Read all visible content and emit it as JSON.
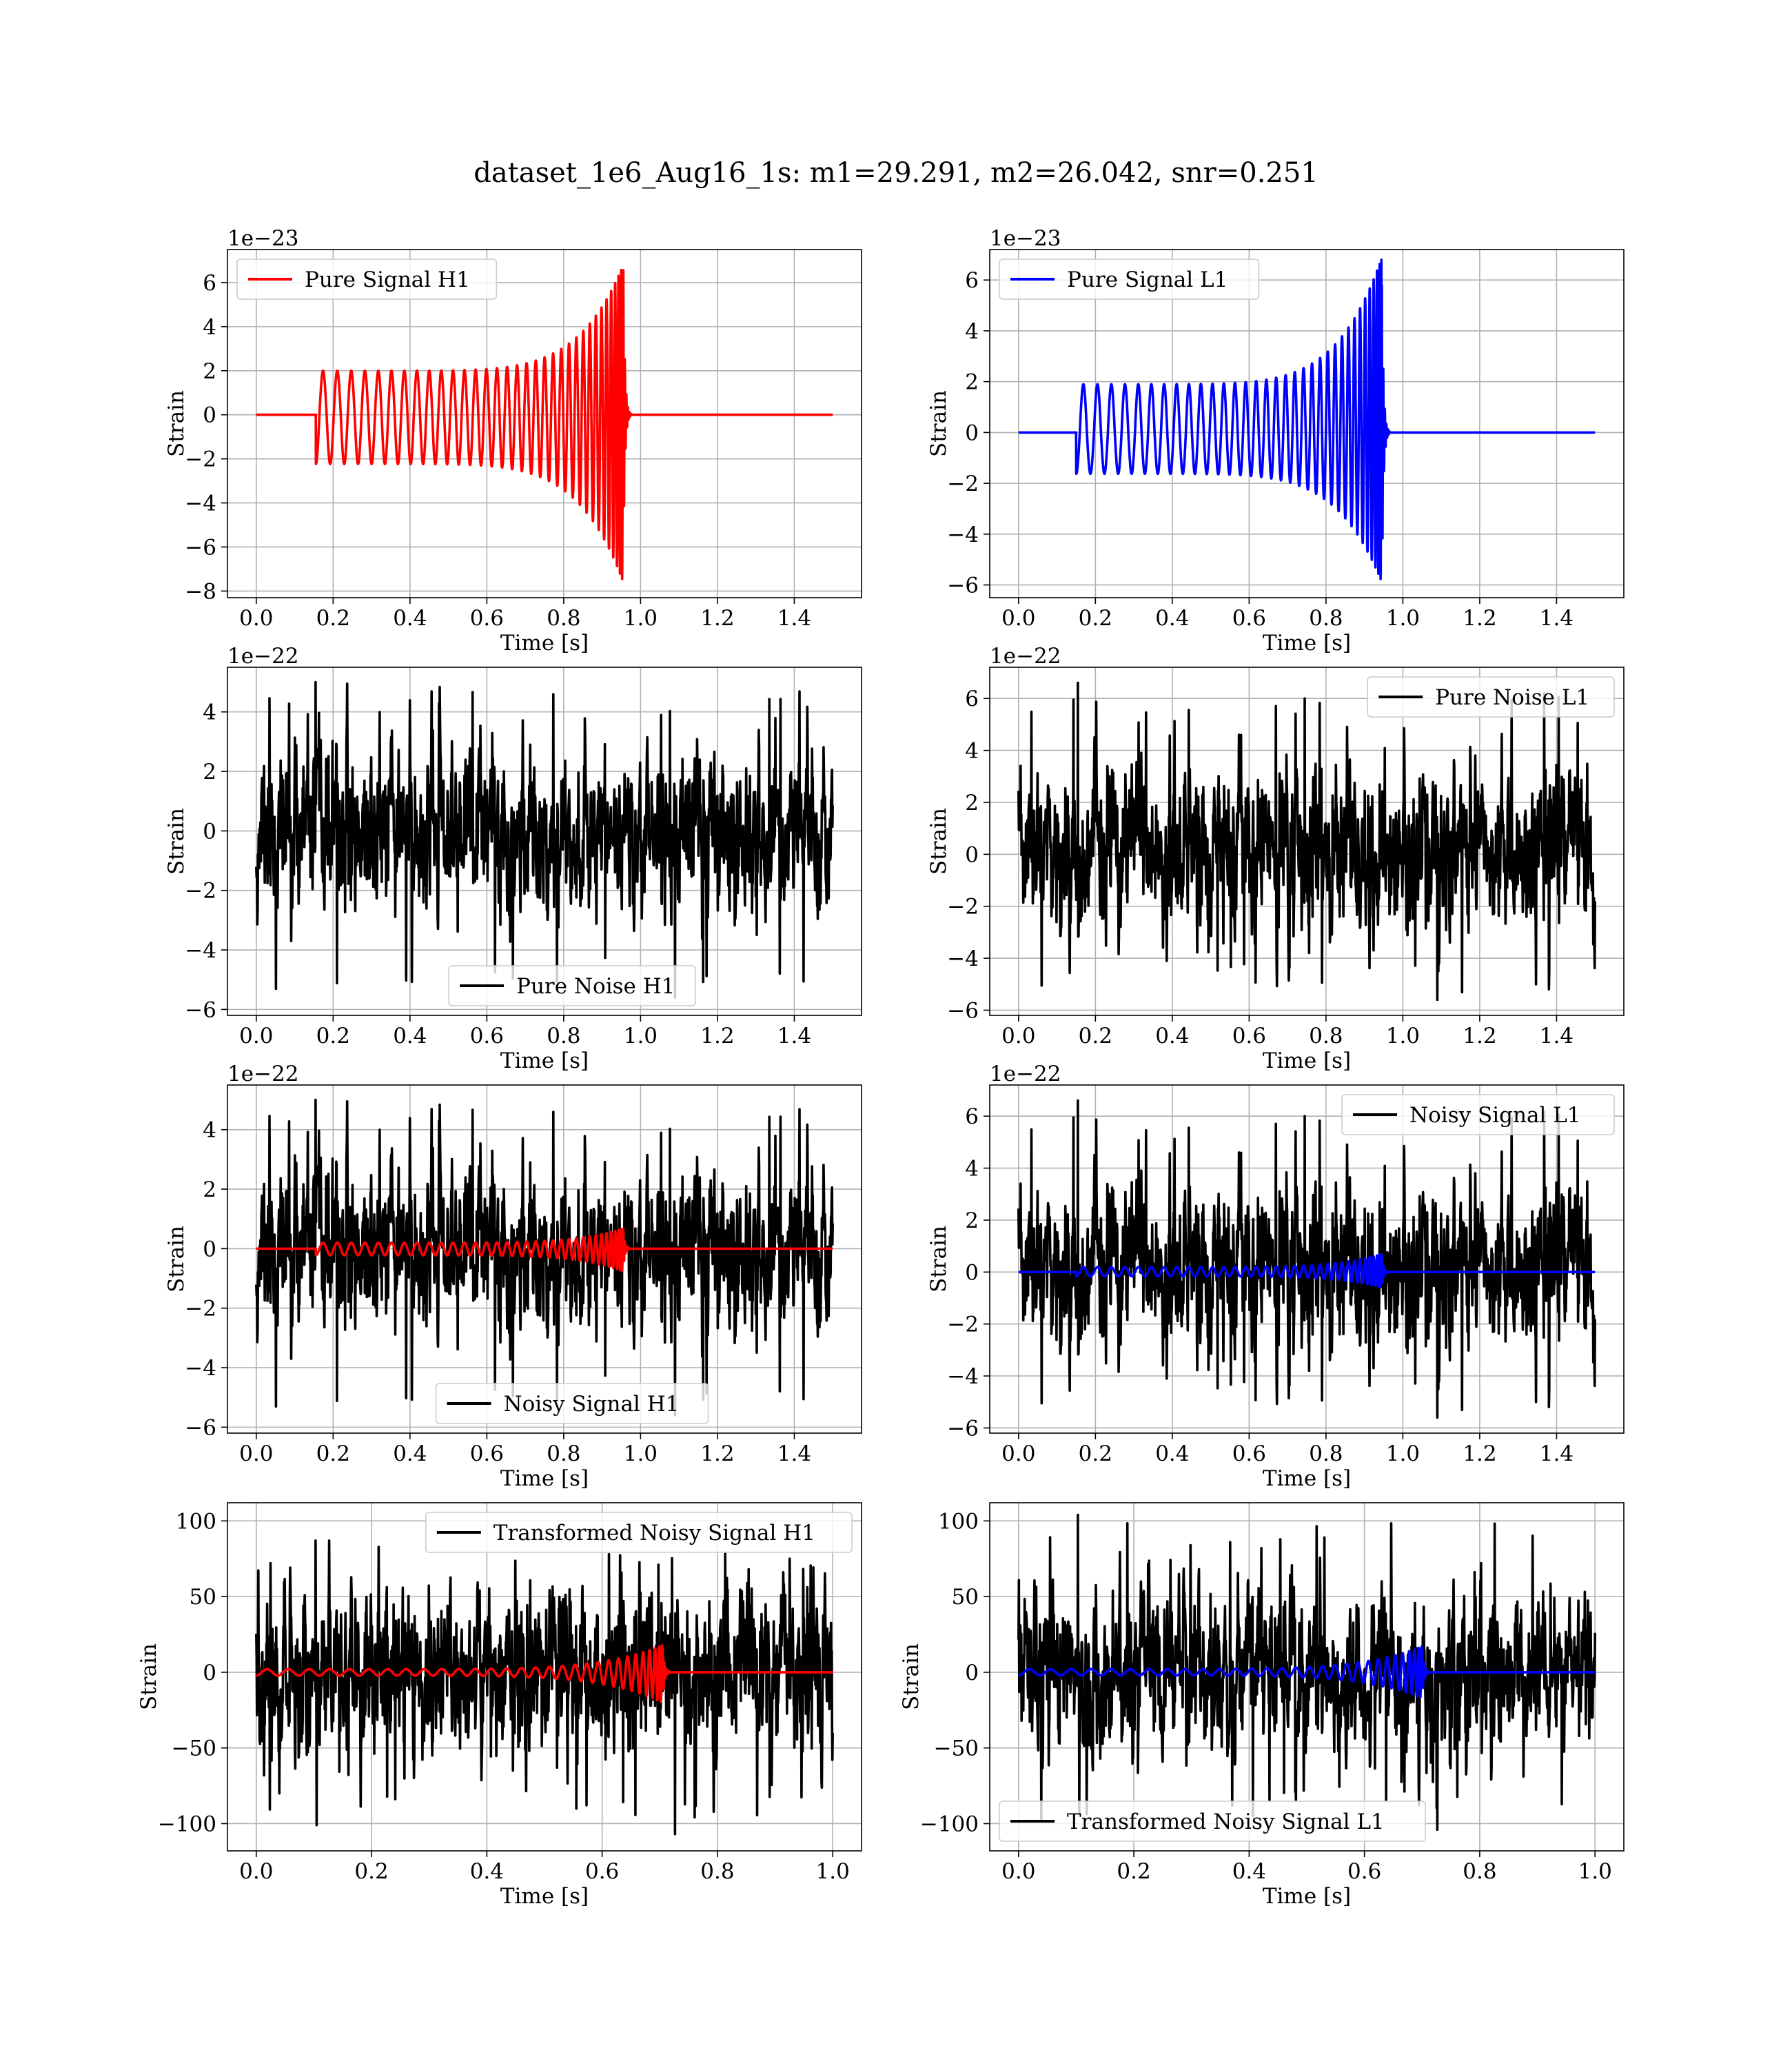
{
  "figure": {
    "title": "dataset_1e6_Aug16_1s: m1=29.291, m2=26.042, snr=0.251"
  },
  "chart_data": [
    {
      "id": "pure-signal-h1",
      "type": "line",
      "xlabel": "Time [s]",
      "ylabel": "Strain",
      "offset_text": "1e−23",
      "xlim": [
        -0.075,
        1.575
      ],
      "ylim": [
        -8.3,
        7.5
      ],
      "xticks": [
        0.0,
        0.2,
        0.4,
        0.6,
        0.8,
        1.0,
        1.2,
        1.4
      ],
      "xtick_labels": [
        "0.0",
        "0.2",
        "0.4",
        "0.6",
        "0.8",
        "1.0",
        "1.2",
        "1.4"
      ],
      "yticks": [
        -8,
        -6,
        -4,
        -2,
        0,
        2,
        4,
        6
      ],
      "ytick_labels": [
        "−8",
        "−6",
        "−4",
        "−2",
        "0",
        "2",
        "4",
        "6"
      ],
      "grid": true,
      "legend_position": "upper-left",
      "series": [
        {
          "name": "Pure Signal H1",
          "color": "#ff0000",
          "kind": "chirp",
          "x_start": 0.0,
          "x_end": 1.5,
          "onset": 0.155,
          "merger": 0.955,
          "ringdown_end": 0.975,
          "amp_start": 2.0,
          "peak_pos": 6.8,
          "peak_neg": -7.6,
          "cycles": 34
        }
      ]
    },
    {
      "id": "pure-signal-l1",
      "type": "line",
      "xlabel": "Time [s]",
      "ylabel": "Strain",
      "offset_text": "1e−23",
      "xlim": [
        -0.075,
        1.575
      ],
      "ylim": [
        -6.5,
        7.2
      ],
      "xticks": [
        0.0,
        0.2,
        0.4,
        0.6,
        0.8,
        1.0,
        1.2,
        1.4
      ],
      "xtick_labels": [
        "0.0",
        "0.2",
        "0.4",
        "0.6",
        "0.8",
        "1.0",
        "1.2",
        "1.4"
      ],
      "yticks": [
        -6,
        -4,
        -2,
        0,
        2,
        4,
        6
      ],
      "ytick_labels": [
        "−6",
        "−4",
        "−2",
        "0",
        "2",
        "4",
        "6"
      ],
      "grid": true,
      "legend_position": "upper-left",
      "series": [
        {
          "name": "Pure Signal L1",
          "color": "#0000ff",
          "kind": "chirp",
          "x_start": 0.0,
          "x_end": 1.5,
          "onset": 0.15,
          "merger": 0.945,
          "ringdown_end": 0.965,
          "amp_start": 1.9,
          "peak_pos": 6.9,
          "peak_neg": -5.9,
          "cycles": 34
        }
      ]
    },
    {
      "id": "pure-noise-h1",
      "type": "line",
      "xlabel": "Time [s]",
      "ylabel": "Strain",
      "offset_text": "1e−22",
      "xlim": [
        -0.075,
        1.575
      ],
      "ylim": [
        -6.2,
        5.5
      ],
      "xticks": [
        0.0,
        0.2,
        0.4,
        0.6,
        0.8,
        1.0,
        1.2,
        1.4
      ],
      "xtick_labels": [
        "0.0",
        "0.2",
        "0.4",
        "0.6",
        "0.8",
        "1.0",
        "1.2",
        "1.4"
      ],
      "yticks": [
        -6,
        -4,
        -2,
        0,
        2,
        4
      ],
      "ytick_labels": [
        "−6",
        "−4",
        "−2",
        "0",
        "2",
        "4"
      ],
      "grid": true,
      "legend_position": "lower-center",
      "series": [
        {
          "name": "Pure Noise H1",
          "color": "#000000",
          "kind": "noise",
          "x_start": 0.0,
          "x_end": 1.5,
          "sigma": 1.25,
          "max": 5.0,
          "min": -5.6,
          "seed": 11
        }
      ]
    },
    {
      "id": "pure-noise-l1",
      "type": "line",
      "xlabel": "Time [s]",
      "ylabel": "Strain",
      "offset_text": "1e−22",
      "xlim": [
        -0.075,
        1.575
      ],
      "ylim": [
        -6.2,
        7.2
      ],
      "xticks": [
        0.0,
        0.2,
        0.4,
        0.6,
        0.8,
        1.0,
        1.2,
        1.4
      ],
      "xtick_labels": [
        "0.0",
        "0.2",
        "0.4",
        "0.6",
        "0.8",
        "1.0",
        "1.2",
        "1.4"
      ],
      "yticks": [
        -6,
        -4,
        -2,
        0,
        2,
        4,
        6
      ],
      "ytick_labels": [
        "−6",
        "−4",
        "−2",
        "0",
        "2",
        "4",
        "6"
      ],
      "grid": true,
      "legend_position": "upper-right",
      "series": [
        {
          "name": "Pure Noise L1",
          "color": "#000000",
          "kind": "noise",
          "x_start": 0.0,
          "x_end": 1.5,
          "sigma": 1.45,
          "max": 6.6,
          "min": -5.6,
          "seed": 23
        }
      ]
    },
    {
      "id": "noisy-signal-h1",
      "type": "line",
      "xlabel": "Time [s]",
      "ylabel": "Strain",
      "offset_text": "1e−22",
      "xlim": [
        -0.075,
        1.575
      ],
      "ylim": [
        -6.2,
        5.5
      ],
      "xticks": [
        0.0,
        0.2,
        0.4,
        0.6,
        0.8,
        1.0,
        1.2,
        1.4
      ],
      "xtick_labels": [
        "0.0",
        "0.2",
        "0.4",
        "0.6",
        "0.8",
        "1.0",
        "1.2",
        "1.4"
      ],
      "yticks": [
        -6,
        -4,
        -2,
        0,
        2,
        4
      ],
      "ytick_labels": [
        "−6",
        "−4",
        "−2",
        "0",
        "2",
        "4"
      ],
      "grid": true,
      "legend_position": "lower-center",
      "series": [
        {
          "name": "Noisy Signal H1",
          "color": "#000000",
          "kind": "noise",
          "x_start": 0.0,
          "x_end": 1.5,
          "sigma": 1.25,
          "max": 5.0,
          "min": -5.6,
          "seed": 11
        },
        {
          "name": "",
          "color": "#ff0000",
          "kind": "chirp",
          "x_start": 0.0,
          "x_end": 1.5,
          "onset": 0.155,
          "merger": 0.955,
          "ringdown_end": 0.975,
          "amp_start": 0.2,
          "peak_pos": 0.68,
          "peak_neg": -0.76,
          "cycles": 34
        }
      ]
    },
    {
      "id": "noisy-signal-l1",
      "type": "line",
      "xlabel": "Time [s]",
      "ylabel": "Strain",
      "offset_text": "1e−22",
      "xlim": [
        -0.075,
        1.575
      ],
      "ylim": [
        -6.2,
        7.2
      ],
      "xticks": [
        0.0,
        0.2,
        0.4,
        0.6,
        0.8,
        1.0,
        1.2,
        1.4
      ],
      "xtick_labels": [
        "0.0",
        "0.2",
        "0.4",
        "0.6",
        "0.8",
        "1.0",
        "1.2",
        "1.4"
      ],
      "yticks": [
        -6,
        -4,
        -2,
        0,
        2,
        4,
        6
      ],
      "ytick_labels": [
        "−6",
        "−4",
        "−2",
        "0",
        "2",
        "4",
        "6"
      ],
      "grid": true,
      "legend_position": "upper-right",
      "series": [
        {
          "name": "Noisy Signal L1",
          "color": "#000000",
          "kind": "noise",
          "x_start": 0.0,
          "x_end": 1.5,
          "sigma": 1.45,
          "max": 6.6,
          "min": -5.6,
          "seed": 23
        },
        {
          "name": "",
          "color": "#0000ff",
          "kind": "chirp",
          "x_start": 0.0,
          "x_end": 1.5,
          "onset": 0.15,
          "merger": 0.945,
          "ringdown_end": 0.965,
          "amp_start": 0.19,
          "peak_pos": 0.69,
          "peak_neg": -0.59,
          "cycles": 34
        }
      ]
    },
    {
      "id": "transformed-noisy-signal-h1",
      "type": "line",
      "xlabel": "Time [s]",
      "ylabel": "Strain",
      "offset_text": "",
      "xlim": [
        -0.05,
        1.05
      ],
      "ylim": [
        -118,
        112
      ],
      "xticks": [
        0.0,
        0.2,
        0.4,
        0.6,
        0.8,
        1.0
      ],
      "xtick_labels": [
        "0.0",
        "0.2",
        "0.4",
        "0.6",
        "0.8",
        "1.0"
      ],
      "yticks": [
        -100,
        -50,
        0,
        50,
        100
      ],
      "ytick_labels": [
        "−100",
        "−50",
        "0",
        "50",
        "100"
      ],
      "grid": true,
      "legend_position": "upper-right",
      "series": [
        {
          "name": "Transformed Noisy Signal H1",
          "color": "#000000",
          "kind": "noise",
          "x_start": 0.0,
          "x_end": 1.0,
          "sigma": 26,
          "max": 87,
          "min": -107,
          "seed": 37
        },
        {
          "name": "",
          "color": "#ff0000",
          "kind": "chirp",
          "x_start": 0.0,
          "x_end": 1.0,
          "onset": 0.0,
          "merger": 0.705,
          "ringdown_end": 0.72,
          "amp_start": 2.0,
          "peak_pos": 18,
          "peak_neg": -20,
          "cycles": 30
        }
      ]
    },
    {
      "id": "transformed-noisy-signal-l1",
      "type": "line",
      "xlabel": "Time [s]",
      "ylabel": "Strain",
      "offset_text": "",
      "xlim": [
        -0.05,
        1.05
      ],
      "ylim": [
        -118,
        112
      ],
      "xticks": [
        0.0,
        0.2,
        0.4,
        0.6,
        0.8,
        1.0
      ],
      "xtick_labels": [
        "0.0",
        "0.2",
        "0.4",
        "0.6",
        "0.8",
        "1.0"
      ],
      "yticks": [
        -100,
        -50,
        0,
        50,
        100
      ],
      "ytick_labels": [
        "−100",
        "−50",
        "0",
        "50",
        "100"
      ],
      "grid": true,
      "legend_position": "lower-left",
      "series": [
        {
          "name": "Transformed Noisy Signal L1",
          "color": "#000000",
          "kind": "noise",
          "x_start": 0.0,
          "x_end": 1.0,
          "sigma": 25,
          "max": 104,
          "min": -104,
          "seed": 53
        },
        {
          "name": "",
          "color": "#0000ff",
          "kind": "chirp",
          "x_start": 0.0,
          "x_end": 1.0,
          "onset": 0.0,
          "merger": 0.7,
          "ringdown_end": 0.715,
          "amp_start": 2.0,
          "peak_pos": 17,
          "peak_neg": -17,
          "cycles": 30
        }
      ]
    }
  ]
}
